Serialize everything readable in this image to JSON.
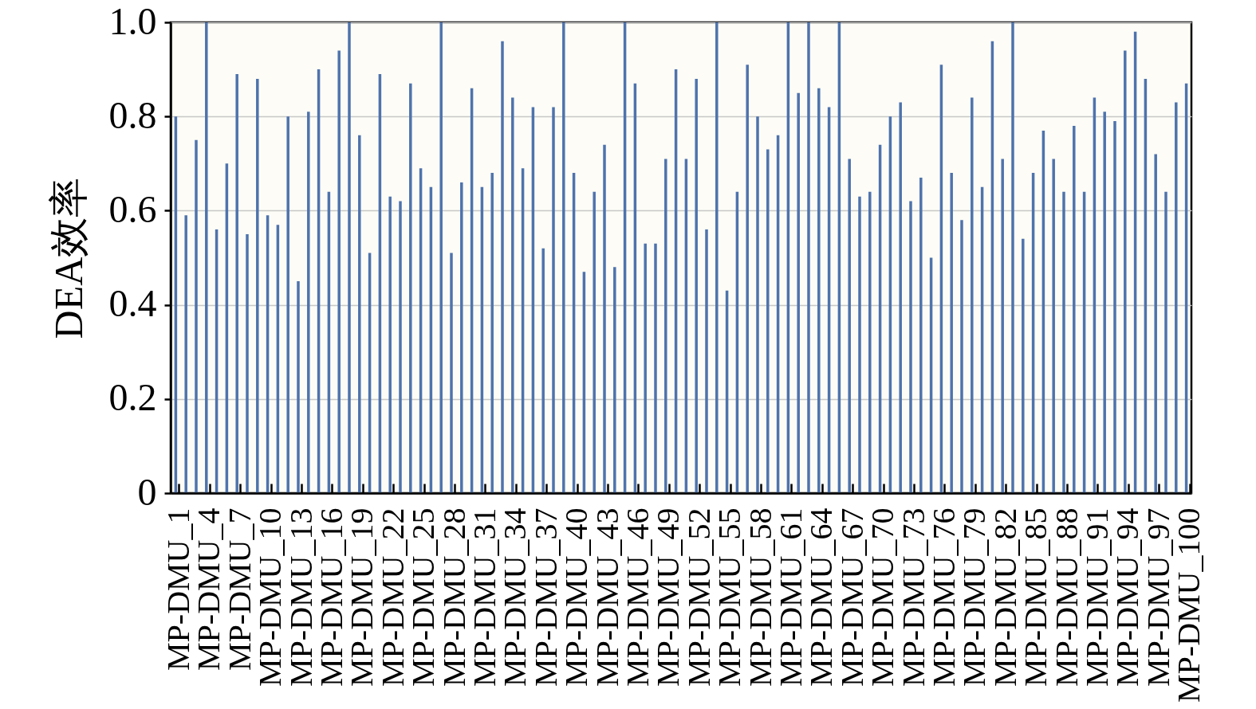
{
  "chart_data": {
    "type": "bar",
    "ylabel": "DEA效率",
    "categories": [
      "MP-DMU_1",
      null,
      null,
      "MP-DMU_4",
      null,
      null,
      "MP-DMU_7",
      null,
      null,
      "MP-DMU_10",
      null,
      null,
      "MP-DMU_13",
      null,
      null,
      "MP-DMU_16",
      null,
      null,
      "MP-DMU_19",
      null,
      null,
      "MP-DMU_22",
      null,
      null,
      "MP-DMU_25",
      null,
      null,
      "MP-DMU_28",
      null,
      null,
      "MP-DMU_31",
      null,
      null,
      "MP-DMU_34",
      null,
      null,
      "MP-DMU_37",
      null,
      null,
      "MP-DMU_40",
      null,
      null,
      "MP-DMU_43",
      null,
      null,
      "MP-DMU_46",
      null,
      null,
      "MP-DMU_49",
      null,
      null,
      "MP-DMU_52",
      null,
      null,
      "MP-DMU_55",
      null,
      null,
      "MP-DMU_58",
      null,
      null,
      "MP-DMU_61",
      null,
      null,
      "MP-DMU_64",
      null,
      null,
      "MP-DMU_67",
      null,
      null,
      "MP-DMU_70",
      null,
      null,
      "MP-DMU_73",
      null,
      null,
      "MP-DMU_76",
      null,
      null,
      "MP-DMU_79",
      null,
      null,
      "MP-DMU_82",
      null,
      null,
      "MP-DMU_85",
      null,
      null,
      "MP-DMU_88",
      null,
      null,
      "MP-DMU_91",
      null,
      null,
      "MP-DMU_94",
      null,
      null,
      "MP-DMU_97",
      null,
      null,
      "MP-DMU_100"
    ],
    "values": [
      0.8,
      0.59,
      0.75,
      1.0,
      0.56,
      0.7,
      0.89,
      0.55,
      0.88,
      0.59,
      0.57,
      0.8,
      0.45,
      0.81,
      0.9,
      0.64,
      0.94,
      1.0,
      0.76,
      0.51,
      0.89,
      0.63,
      0.62,
      0.87,
      0.69,
      0.65,
      1.0,
      0.51,
      0.66,
      0.86,
      0.65,
      0.68,
      0.96,
      0.84,
      0.69,
      0.82,
      0.52,
      0.82,
      1.0,
      0.68,
      0.47,
      0.64,
      0.74,
      0.48,
      1.0,
      0.87,
      0.53,
      0.53,
      0.71,
      0.9,
      0.71,
      0.88,
      0.56,
      1.0,
      0.43,
      0.64,
      0.91,
      0.8,
      0.73,
      0.76,
      1.0,
      0.85,
      1.0,
      0.86,
      0.82,
      1.0,
      0.71,
      0.63,
      0.64,
      0.74,
      0.8,
      0.83,
      0.62,
      0.67,
      0.5,
      0.91,
      0.68,
      0.58,
      0.84,
      0.65,
      0.96,
      0.71,
      1.0,
      0.54,
      0.68,
      0.77,
      0.71,
      0.64,
      0.78,
      0.64,
      0.84,
      0.81,
      0.79,
      0.94,
      0.98,
      0.88,
      0.72,
      0.64,
      0.83,
      0.87
    ],
    "color": "#4e73ad",
    "ylim": [
      0,
      1
    ],
    "yticks": [
      0,
      0.2,
      0.4,
      0.6,
      0.8,
      {
        "value": 1,
        "label": "1.0"
      }
    ],
    "grid": "y"
  }
}
